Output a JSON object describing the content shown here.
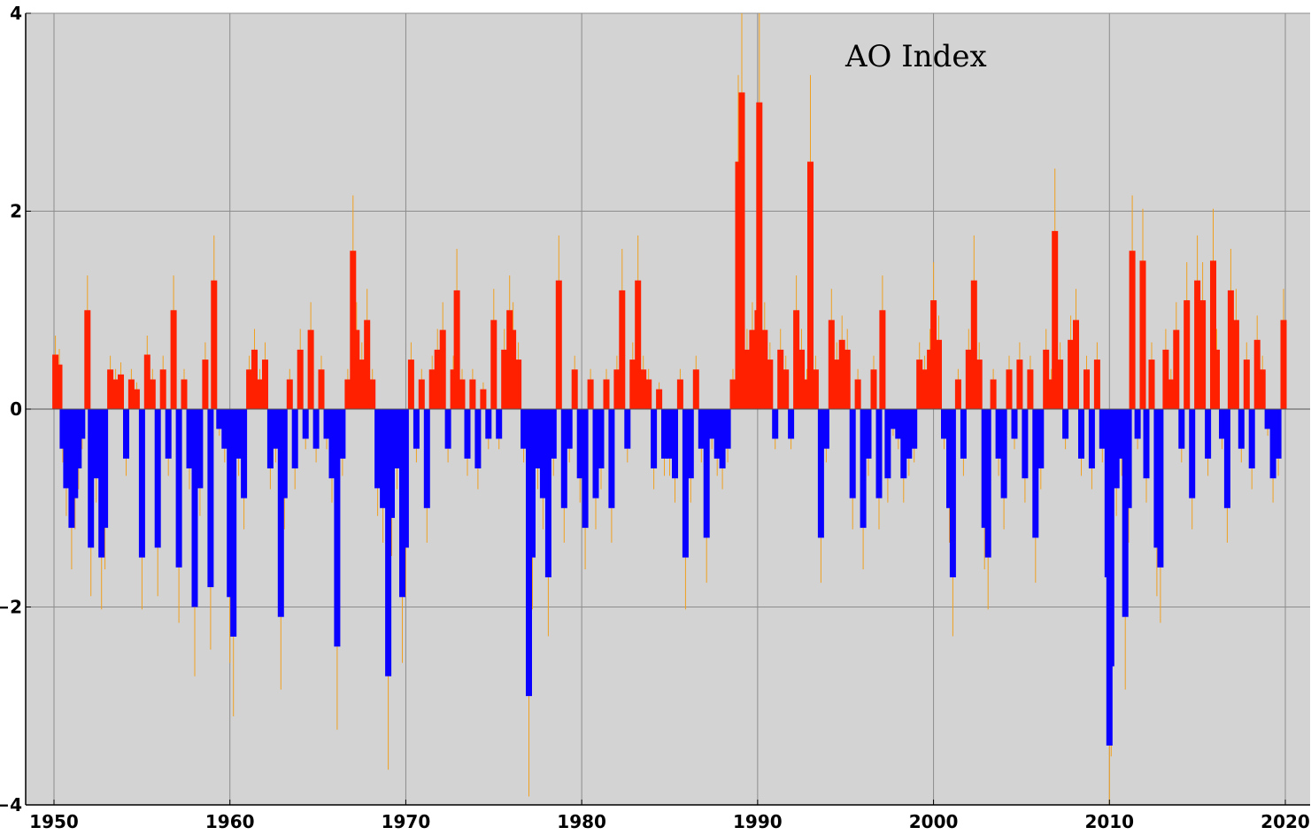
{
  "chart_data": {
    "type": "bar",
    "title": "AO Index",
    "xlabel": "",
    "ylabel": "",
    "xlim": [
      1950,
      2020
    ],
    "ylim": [
      -4,
      4
    ],
    "xticks": [
      1950,
      1960,
      1970,
      1980,
      1990,
      2000,
      2010,
      2020
    ],
    "yticks": [
      -4,
      -2,
      0,
      2,
      4
    ],
    "ytick_labels": [
      "−4",
      "−2",
      "0",
      "2",
      "4"
    ],
    "grid": true,
    "legend": "none",
    "colors": {
      "positive_bar": "#ff2000",
      "negative_bar": "#0a00ff",
      "monthly_line": "#f0a020",
      "background": "#d3d3d3",
      "grid": "#8c8c8c",
      "zero_line": "#555555"
    },
    "series": [
      {
        "name": "",
        "values": [
          {
            "x": 1950.08,
            "y": 0.55
          },
          {
            "x": 1950.3,
            "y": 0.45
          },
          {
            "x": 1950.5,
            "y": -0.4
          },
          {
            "x": 1950.7,
            "y": -0.8
          },
          {
            "x": 1951.0,
            "y": -1.2
          },
          {
            "x": 1951.2,
            "y": -0.9
          },
          {
            "x": 1951.4,
            "y": -0.6
          },
          {
            "x": 1951.6,
            "y": -0.3
          },
          {
            "x": 1951.9,
            "y": 1.0
          },
          {
            "x": 1952.1,
            "y": -1.4
          },
          {
            "x": 1952.4,
            "y": -0.7
          },
          {
            "x": 1952.7,
            "y": -1.5
          },
          {
            "x": 1952.9,
            "y": -1.2
          },
          {
            "x": 1953.2,
            "y": 0.4
          },
          {
            "x": 1953.5,
            "y": 0.3
          },
          {
            "x": 1953.8,
            "y": 0.35
          },
          {
            "x": 1954.1,
            "y": -0.5
          },
          {
            "x": 1954.4,
            "y": 0.3
          },
          {
            "x": 1954.7,
            "y": 0.2
          },
          {
            "x": 1955.0,
            "y": -1.5
          },
          {
            "x": 1955.3,
            "y": 0.55
          },
          {
            "x": 1955.6,
            "y": 0.3
          },
          {
            "x": 1955.9,
            "y": -1.4
          },
          {
            "x": 1956.2,
            "y": 0.4
          },
          {
            "x": 1956.5,
            "y": -0.5
          },
          {
            "x": 1956.8,
            "y": 1.0
          },
          {
            "x": 1957.1,
            "y": -1.6
          },
          {
            "x": 1957.4,
            "y": 0.3
          },
          {
            "x": 1957.7,
            "y": -0.6
          },
          {
            "x": 1958.0,
            "y": -2.0
          },
          {
            "x": 1958.3,
            "y": -0.8
          },
          {
            "x": 1958.6,
            "y": 0.5
          },
          {
            "x": 1958.9,
            "y": -1.8
          },
          {
            "x": 1959.1,
            "y": 1.3
          },
          {
            "x": 1959.4,
            "y": -0.2
          },
          {
            "x": 1959.7,
            "y": -0.4
          },
          {
            "x": 1960.0,
            "y": -1.9
          },
          {
            "x": 1960.2,
            "y": -2.3
          },
          {
            "x": 1960.5,
            "y": -0.5
          },
          {
            "x": 1960.8,
            "y": -0.9
          },
          {
            "x": 1961.1,
            "y": 0.4
          },
          {
            "x": 1961.4,
            "y": 0.6
          },
          {
            "x": 1961.7,
            "y": 0.3
          },
          {
            "x": 1962.0,
            "y": 0.5
          },
          {
            "x": 1962.3,
            "y": -0.6
          },
          {
            "x": 1962.6,
            "y": -0.4
          },
          {
            "x": 1962.9,
            "y": -2.1
          },
          {
            "x": 1963.1,
            "y": -0.9
          },
          {
            "x": 1963.4,
            "y": 0.3
          },
          {
            "x": 1963.7,
            "y": -0.6
          },
          {
            "x": 1964.0,
            "y": 0.6
          },
          {
            "x": 1964.3,
            "y": -0.3
          },
          {
            "x": 1964.6,
            "y": 0.8
          },
          {
            "x": 1964.9,
            "y": -0.4
          },
          {
            "x": 1965.2,
            "y": 0.4
          },
          {
            "x": 1965.5,
            "y": -0.3
          },
          {
            "x": 1965.8,
            "y": -0.7
          },
          {
            "x": 1966.1,
            "y": -2.4
          },
          {
            "x": 1966.4,
            "y": -0.5
          },
          {
            "x": 1966.7,
            "y": 0.3
          },
          {
            "x": 1967.0,
            "y": 1.6
          },
          {
            "x": 1967.2,
            "y": 0.8
          },
          {
            "x": 1967.5,
            "y": 0.5
          },
          {
            "x": 1967.8,
            "y": 0.9
          },
          {
            "x": 1968.1,
            "y": 0.3
          },
          {
            "x": 1968.4,
            "y": -0.8
          },
          {
            "x": 1968.7,
            "y": -1.0
          },
          {
            "x": 1969.0,
            "y": -2.7
          },
          {
            "x": 1969.2,
            "y": -1.1
          },
          {
            "x": 1969.5,
            "y": -0.6
          },
          {
            "x": 1969.8,
            "y": -1.9
          },
          {
            "x": 1970.0,
            "y": -1.4
          },
          {
            "x": 1970.3,
            "y": 0.5
          },
          {
            "x": 1970.6,
            "y": -0.4
          },
          {
            "x": 1970.9,
            "y": 0.3
          },
          {
            "x": 1971.2,
            "y": -1.0
          },
          {
            "x": 1971.5,
            "y": 0.4
          },
          {
            "x": 1971.8,
            "y": 0.6
          },
          {
            "x": 1972.1,
            "y": 0.8
          },
          {
            "x": 1972.4,
            "y": -0.4
          },
          {
            "x": 1972.7,
            "y": 0.4
          },
          {
            "x": 1972.9,
            "y": 1.2
          },
          {
            "x": 1973.2,
            "y": 0.3
          },
          {
            "x": 1973.5,
            "y": -0.5
          },
          {
            "x": 1973.8,
            "y": 0.3
          },
          {
            "x": 1974.1,
            "y": -0.6
          },
          {
            "x": 1974.4,
            "y": 0.2
          },
          {
            "x": 1974.7,
            "y": -0.3
          },
          {
            "x": 1975.0,
            "y": 0.9
          },
          {
            "x": 1975.3,
            "y": -0.3
          },
          {
            "x": 1975.6,
            "y": 0.6
          },
          {
            "x": 1975.9,
            "y": 1.0
          },
          {
            "x": 1976.1,
            "y": 0.8
          },
          {
            "x": 1976.4,
            "y": 0.5
          },
          {
            "x": 1976.7,
            "y": -0.4
          },
          {
            "x": 1977.0,
            "y": -2.9
          },
          {
            "x": 1977.2,
            "y": -1.5
          },
          {
            "x": 1977.5,
            "y": -0.6
          },
          {
            "x": 1977.8,
            "y": -0.9
          },
          {
            "x": 1978.1,
            "y": -1.7
          },
          {
            "x": 1978.4,
            "y": -0.5
          },
          {
            "x": 1978.7,
            "y": 1.3
          },
          {
            "x": 1979.0,
            "y": -1.0
          },
          {
            "x": 1979.3,
            "y": -0.4
          },
          {
            "x": 1979.6,
            "y": 0.4
          },
          {
            "x": 1979.9,
            "y": -0.7
          },
          {
            "x": 1980.2,
            "y": -1.2
          },
          {
            "x": 1980.5,
            "y": 0.3
          },
          {
            "x": 1980.8,
            "y": -0.9
          },
          {
            "x": 1981.1,
            "y": -0.6
          },
          {
            "x": 1981.4,
            "y": 0.3
          },
          {
            "x": 1981.7,
            "y": -1.0
          },
          {
            "x": 1982.0,
            "y": 0.4
          },
          {
            "x": 1982.3,
            "y": 1.2
          },
          {
            "x": 1982.6,
            "y": -0.4
          },
          {
            "x": 1982.9,
            "y": 0.5
          },
          {
            "x": 1983.2,
            "y": 1.3
          },
          {
            "x": 1983.5,
            "y": 0.4
          },
          {
            "x": 1983.8,
            "y": 0.3
          },
          {
            "x": 1984.1,
            "y": -0.6
          },
          {
            "x": 1984.4,
            "y": 0.2
          },
          {
            "x": 1984.7,
            "y": -0.5
          },
          {
            "x": 1985.0,
            "y": -0.5
          },
          {
            "x": 1985.3,
            "y": -0.7
          },
          {
            "x": 1985.6,
            "y": 0.3
          },
          {
            "x": 1985.9,
            "y": -1.5
          },
          {
            "x": 1986.2,
            "y": -0.7
          },
          {
            "x": 1986.5,
            "y": 0.4
          },
          {
            "x": 1986.8,
            "y": -0.4
          },
          {
            "x": 1987.1,
            "y": -1.3
          },
          {
            "x": 1987.4,
            "y": -0.3
          },
          {
            "x": 1987.7,
            "y": -0.5
          },
          {
            "x": 1988.0,
            "y": -0.6
          },
          {
            "x": 1988.3,
            "y": -0.4
          },
          {
            "x": 1988.6,
            "y": 0.3
          },
          {
            "x": 1988.9,
            "y": 2.5
          },
          {
            "x": 1989.1,
            "y": 3.2
          },
          {
            "x": 1989.4,
            "y": 0.6
          },
          {
            "x": 1989.7,
            "y": 0.8
          },
          {
            "x": 1990.0,
            "y": 1.0
          },
          {
            "x": 1990.1,
            "y": 3.1
          },
          {
            "x": 1990.4,
            "y": 0.8
          },
          {
            "x": 1990.7,
            "y": 0.5
          },
          {
            "x": 1991.0,
            "y": -0.3
          },
          {
            "x": 1991.3,
            "y": 0.6
          },
          {
            "x": 1991.6,
            "y": 0.4
          },
          {
            "x": 1991.9,
            "y": -0.3
          },
          {
            "x": 1992.2,
            "y": 1.0
          },
          {
            "x": 1992.5,
            "y": 0.6
          },
          {
            "x": 1992.8,
            "y": 0.3
          },
          {
            "x": 1993.0,
            "y": 2.5
          },
          {
            "x": 1993.3,
            "y": 0.4
          },
          {
            "x": 1993.6,
            "y": -1.3
          },
          {
            "x": 1993.9,
            "y": -0.4
          },
          {
            "x": 1994.2,
            "y": 0.9
          },
          {
            "x": 1994.5,
            "y": 0.5
          },
          {
            "x": 1994.8,
            "y": 0.7
          },
          {
            "x": 1995.1,
            "y": 0.6
          },
          {
            "x": 1995.4,
            "y": -0.9
          },
          {
            "x": 1995.7,
            "y": 0.3
          },
          {
            "x": 1996.0,
            "y": -1.2
          },
          {
            "x": 1996.3,
            "y": -0.5
          },
          {
            "x": 1996.6,
            "y": 0.4
          },
          {
            "x": 1996.9,
            "y": -0.9
          },
          {
            "x": 1997.1,
            "y": 1.0
          },
          {
            "x": 1997.4,
            "y": -0.7
          },
          {
            "x": 1997.7,
            "y": -0.2
          },
          {
            "x": 1998.0,
            "y": -0.3
          },
          {
            "x": 1998.3,
            "y": -0.7
          },
          {
            "x": 1998.6,
            "y": -0.5
          },
          {
            "x": 1998.9,
            "y": -0.4
          },
          {
            "x": 1999.2,
            "y": 0.5
          },
          {
            "x": 1999.5,
            "y": 0.4
          },
          {
            "x": 1999.8,
            "y": 0.6
          },
          {
            "x": 2000.0,
            "y": 1.1
          },
          {
            "x": 2000.3,
            "y": 0.7
          },
          {
            "x": 2000.6,
            "y": -0.3
          },
          {
            "x": 2000.9,
            "y": -1.0
          },
          {
            "x": 2001.1,
            "y": -1.7
          },
          {
            "x": 2001.4,
            "y": 0.3
          },
          {
            "x": 2001.7,
            "y": -0.5
          },
          {
            "x": 2002.0,
            "y": 0.6
          },
          {
            "x": 2002.3,
            "y": 1.3
          },
          {
            "x": 2002.6,
            "y": 0.5
          },
          {
            "x": 2002.9,
            "y": -1.2
          },
          {
            "x": 2003.1,
            "y": -1.5
          },
          {
            "x": 2003.4,
            "y": 0.3
          },
          {
            "x": 2003.7,
            "y": -0.5
          },
          {
            "x": 2004.0,
            "y": -0.9
          },
          {
            "x": 2004.3,
            "y": 0.4
          },
          {
            "x": 2004.6,
            "y": -0.3
          },
          {
            "x": 2004.9,
            "y": 0.5
          },
          {
            "x": 2005.2,
            "y": -0.7
          },
          {
            "x": 2005.5,
            "y": 0.4
          },
          {
            "x": 2005.8,
            "y": -1.3
          },
          {
            "x": 2006.1,
            "y": -0.6
          },
          {
            "x": 2006.4,
            "y": 0.6
          },
          {
            "x": 2006.7,
            "y": 0.3
          },
          {
            "x": 2006.9,
            "y": 1.8
          },
          {
            "x": 2007.2,
            "y": 0.5
          },
          {
            "x": 2007.5,
            "y": -0.3
          },
          {
            "x": 2007.8,
            "y": 0.7
          },
          {
            "x": 2008.1,
            "y": 0.9
          },
          {
            "x": 2008.4,
            "y": -0.5
          },
          {
            "x": 2008.7,
            "y": 0.4
          },
          {
            "x": 2009.0,
            "y": -0.6
          },
          {
            "x": 2009.3,
            "y": 0.5
          },
          {
            "x": 2009.6,
            "y": -0.4
          },
          {
            "x": 2009.9,
            "y": -1.7
          },
          {
            "x": 2010.0,
            "y": -3.4
          },
          {
            "x": 2010.1,
            "y": -2.6
          },
          {
            "x": 2010.4,
            "y": -0.8
          },
          {
            "x": 2010.7,
            "y": -0.5
          },
          {
            "x": 2010.9,
            "y": -2.1
          },
          {
            "x": 2011.1,
            "y": -1.0
          },
          {
            "x": 2011.3,
            "y": 1.6
          },
          {
            "x": 2011.6,
            "y": -0.3
          },
          {
            "x": 2011.9,
            "y": 1.5
          },
          {
            "x": 2012.1,
            "y": -0.7
          },
          {
            "x": 2012.4,
            "y": 0.5
          },
          {
            "x": 2012.7,
            "y": -1.4
          },
          {
            "x": 2012.9,
            "y": -1.6
          },
          {
            "x": 2013.2,
            "y": 0.6
          },
          {
            "x": 2013.5,
            "y": 0.3
          },
          {
            "x": 2013.8,
            "y": 0.8
          },
          {
            "x": 2014.1,
            "y": -0.4
          },
          {
            "x": 2014.4,
            "y": 1.1
          },
          {
            "x": 2014.7,
            "y": -0.9
          },
          {
            "x": 2015.0,
            "y": 1.3
          },
          {
            "x": 2015.3,
            "y": 1.1
          },
          {
            "x": 2015.6,
            "y": -0.5
          },
          {
            "x": 2015.9,
            "y": 1.5
          },
          {
            "x": 2016.1,
            "y": 0.6
          },
          {
            "x": 2016.4,
            "y": -0.3
          },
          {
            "x": 2016.7,
            "y": -1.0
          },
          {
            "x": 2016.9,
            "y": 1.2
          },
          {
            "x": 2017.2,
            "y": 0.9
          },
          {
            "x": 2017.5,
            "y": -0.4
          },
          {
            "x": 2017.8,
            "y": 0.5
          },
          {
            "x": 2018.1,
            "y": -0.6
          },
          {
            "x": 2018.4,
            "y": 0.7
          },
          {
            "x": 2018.7,
            "y": 0.4
          },
          {
            "x": 2019.0,
            "y": -0.2
          },
          {
            "x": 2019.3,
            "y": -0.7
          },
          {
            "x": 2019.6,
            "y": -0.5
          },
          {
            "x": 2019.9,
            "y": 0.9
          }
        ]
      }
    ]
  }
}
